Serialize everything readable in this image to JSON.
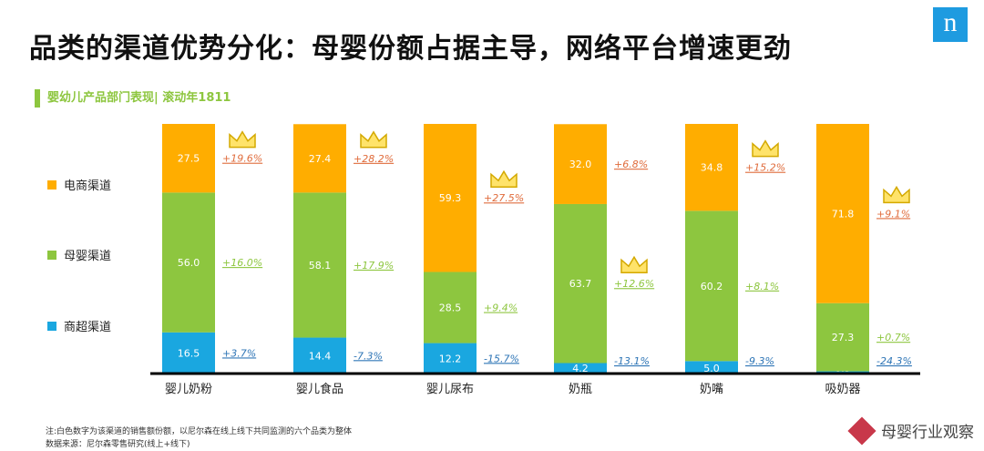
{
  "header": {
    "title": "品类的渠道优势分化：母婴份额占据主导，网络平台增速更劲",
    "logo": "n"
  },
  "subtitle": "婴幼儿产品部门表现| 滚动年1811",
  "footnote": [
    "注:白色数字为该渠道的销售额份额，以尼尔森在线上线下共同监测的六个品类为整体",
    "数据来源：尼尔森零售研究(线上+线下)"
  ],
  "brand": {
    "name": "母婴行业观察",
    "url": "muyingzhicha.com"
  },
  "chart_data": {
    "type": "bar",
    "stacked": true,
    "ylim": [
      0,
      100
    ],
    "legend_placement": "left",
    "categories": [
      "婴儿奶粉",
      "婴儿食品",
      "婴儿尿布",
      "奶瓶",
      "奶嘴",
      "吸奶器"
    ],
    "series": [
      {
        "name": "商超渠道",
        "color": "#1aa7e0",
        "values": [
          16.5,
          14.4,
          12.2,
          4.2,
          5.0,
          0.9
        ],
        "growth": [
          "+3.7%",
          "-7.3%",
          "-15.7%",
          "-13.1%",
          "-9.3%",
          "-24.3%"
        ],
        "growth_color": "#2e75b6"
      },
      {
        "name": "母婴渠道",
        "color": "#8dc63f",
        "values": [
          56.0,
          58.1,
          28.5,
          63.7,
          60.2,
          27.3
        ],
        "growth": [
          "+16.0%",
          "+17.9%",
          "+9.4%",
          "+12.6%",
          "+8.1%",
          "+0.7%"
        ],
        "growth_color": "#8dc63f"
      },
      {
        "name": "电商渠道",
        "color": "#ffad00",
        "values": [
          27.5,
          27.4,
          59.3,
          32.0,
          34.8,
          71.8
        ],
        "growth": [
          "+19.6%",
          "+28.2%",
          "+27.5%",
          "+6.8%",
          "+15.2%",
          "+9.1%"
        ],
        "growth_color": "#e06c3c"
      }
    ],
    "crown_marks": [
      "电商渠道",
      "电商渠道",
      "电商渠道",
      "母婴渠道",
      "电商渠道",
      "电商渠道"
    ]
  }
}
